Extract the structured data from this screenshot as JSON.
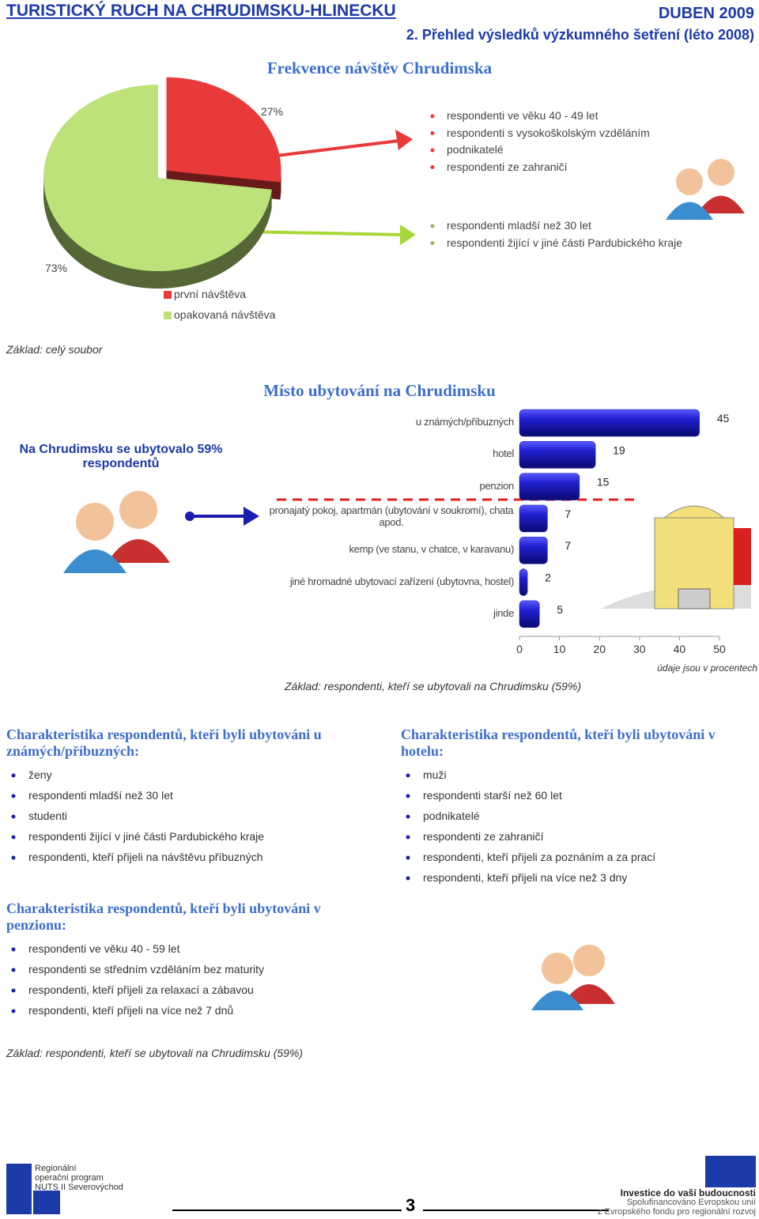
{
  "header": {
    "title": "TURISTICKÝ RUCH NA CHRUDIMSKU-HLINECKU",
    "date": "DUBEN 2009",
    "subtitle": "2. Přehled výsledků výzkumného šetření (léto 2008)"
  },
  "chart_data": [
    {
      "type": "pie",
      "title": "Frekvence návštěv Chrudimska",
      "categories": [
        "první návštěva",
        "opakovaná návštěva"
      ],
      "values": [
        27,
        73
      ],
      "value_labels": [
        "27%",
        "73%"
      ],
      "colors": [
        "#e83a3a",
        "#bde27a"
      ],
      "annotations": [
        [
          "respondenti ve věku 40 - 49 let",
          "respondenti s vysokoškolským vzděláním",
          "podnikatelé",
          "respondenti ze zahraničí"
        ],
        [
          "respondenti mladší než 30 let",
          "respondenti žijící v jiné části Pardubického kraje"
        ]
      ],
      "note": "Základ: celý soubor"
    },
    {
      "type": "bar",
      "title": "Místo ubytování na Chrudimsku",
      "categories": [
        "u známých/příbuzných",
        "hotel",
        "penzion",
        "pronajatý pokoj, apartmán (ubytování v soukromí), chata apod.",
        "kemp (ve stanu, v chatce, v karavanu)",
        "jiné hromadné ubytovací zařízení (ubytovna, hostel)",
        "jinde"
      ],
      "values": [
        45,
        19,
        15,
        7,
        7,
        2,
        5
      ],
      "color": "#1c1cb0",
      "xlim": [
        0,
        50
      ],
      "xticks": [
        0,
        10,
        20,
        30,
        40,
        50
      ],
      "callout": "Na Chrudimsku se ubytovalo 59% respondentů",
      "note": "Základ: respondenti, kteří se ubytovali na Chrudimsku (59%)",
      "unit_note": "údaje jsou v procentech"
    }
  ],
  "sections": [
    {
      "title": "Charakteristika respondentů, kteří byli ubytováni u známých/příbuzných:",
      "items": [
        "ženy",
        "respondenti mladší než 30 let",
        "studenti",
        "respondenti žijící v jiné části Pardubického kraje",
        "respondenti, kteří přijeli na návštěvu příbuzných"
      ]
    },
    {
      "title": "Charakteristika respondentů, kteří byli ubytováni v hotelu:",
      "items": [
        "muži",
        "respondenti starší než 60 let",
        "podnikatelé",
        "respondenti ze zahraničí",
        "respondenti, kteří přijeli za poznáním a za prací",
        "respondenti, kteří přijeli na více než 3 dny"
      ]
    },
    {
      "title": "Charakteristika respondentů, kteří byli ubytováni v penzionu:",
      "items": [
        "respondenti ve věku 40 - 59 let",
        "respondenti se středním vzděláním bez maturity",
        "respondenti, kteří přijeli za relaxací a zábavou",
        "respondenti, kteří přijeli na více než 7 dnů"
      ]
    }
  ],
  "footer": {
    "note": "Základ: respondenti, kteří se ubytovali na Chrudimsku (59%)",
    "page": "3",
    "logo_left": [
      "Regionální",
      "operační program",
      "NUTS II Severovýchod"
    ],
    "logo_right": [
      "Investice do vaší budoucnosti",
      "Spolufinancováno Evropskou unií",
      "z Evropského fondu pro regionální rozvoj"
    ]
  }
}
